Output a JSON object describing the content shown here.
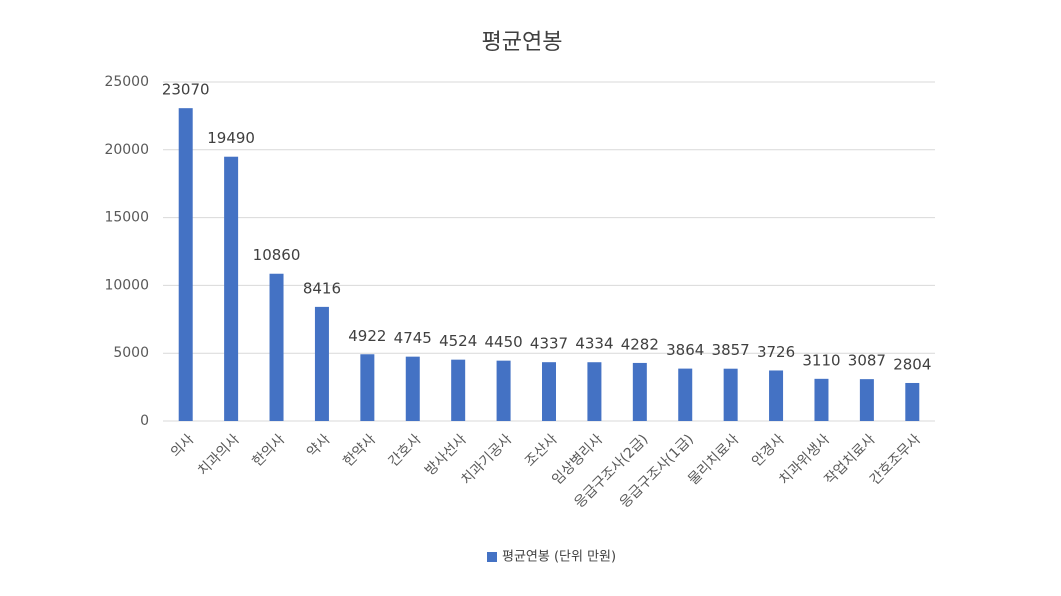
{
  "chart_data": {
    "type": "bar",
    "title": "평균연봉",
    "categories": [
      "의사",
      "치과의사",
      "한의사",
      "약사",
      "한약사",
      "간호사",
      "방사선사",
      "치과기공사",
      "조산사",
      "임상병리사",
      "응급구조사(2급)",
      "응급구조사(1급)",
      "물리치료사",
      "안경사",
      "치과위생사",
      "작업치료사",
      "간호조무사"
    ],
    "series": [
      {
        "name": "평균연봉 (단위 만원)",
        "color": "#4472c4",
        "values": [
          23070,
          19490,
          10860,
          8416,
          4922,
          4745,
          4524,
          4450,
          4337,
          4334,
          4282,
          3864,
          3857,
          3726,
          3110,
          3087,
          2804
        ]
      }
    ],
    "ylim": [
      0,
      25000
    ],
    "yticks": [
      0,
      5000,
      10000,
      15000,
      20000,
      25000
    ],
    "grid": true,
    "data_labels": true,
    "legend": "bottom"
  }
}
